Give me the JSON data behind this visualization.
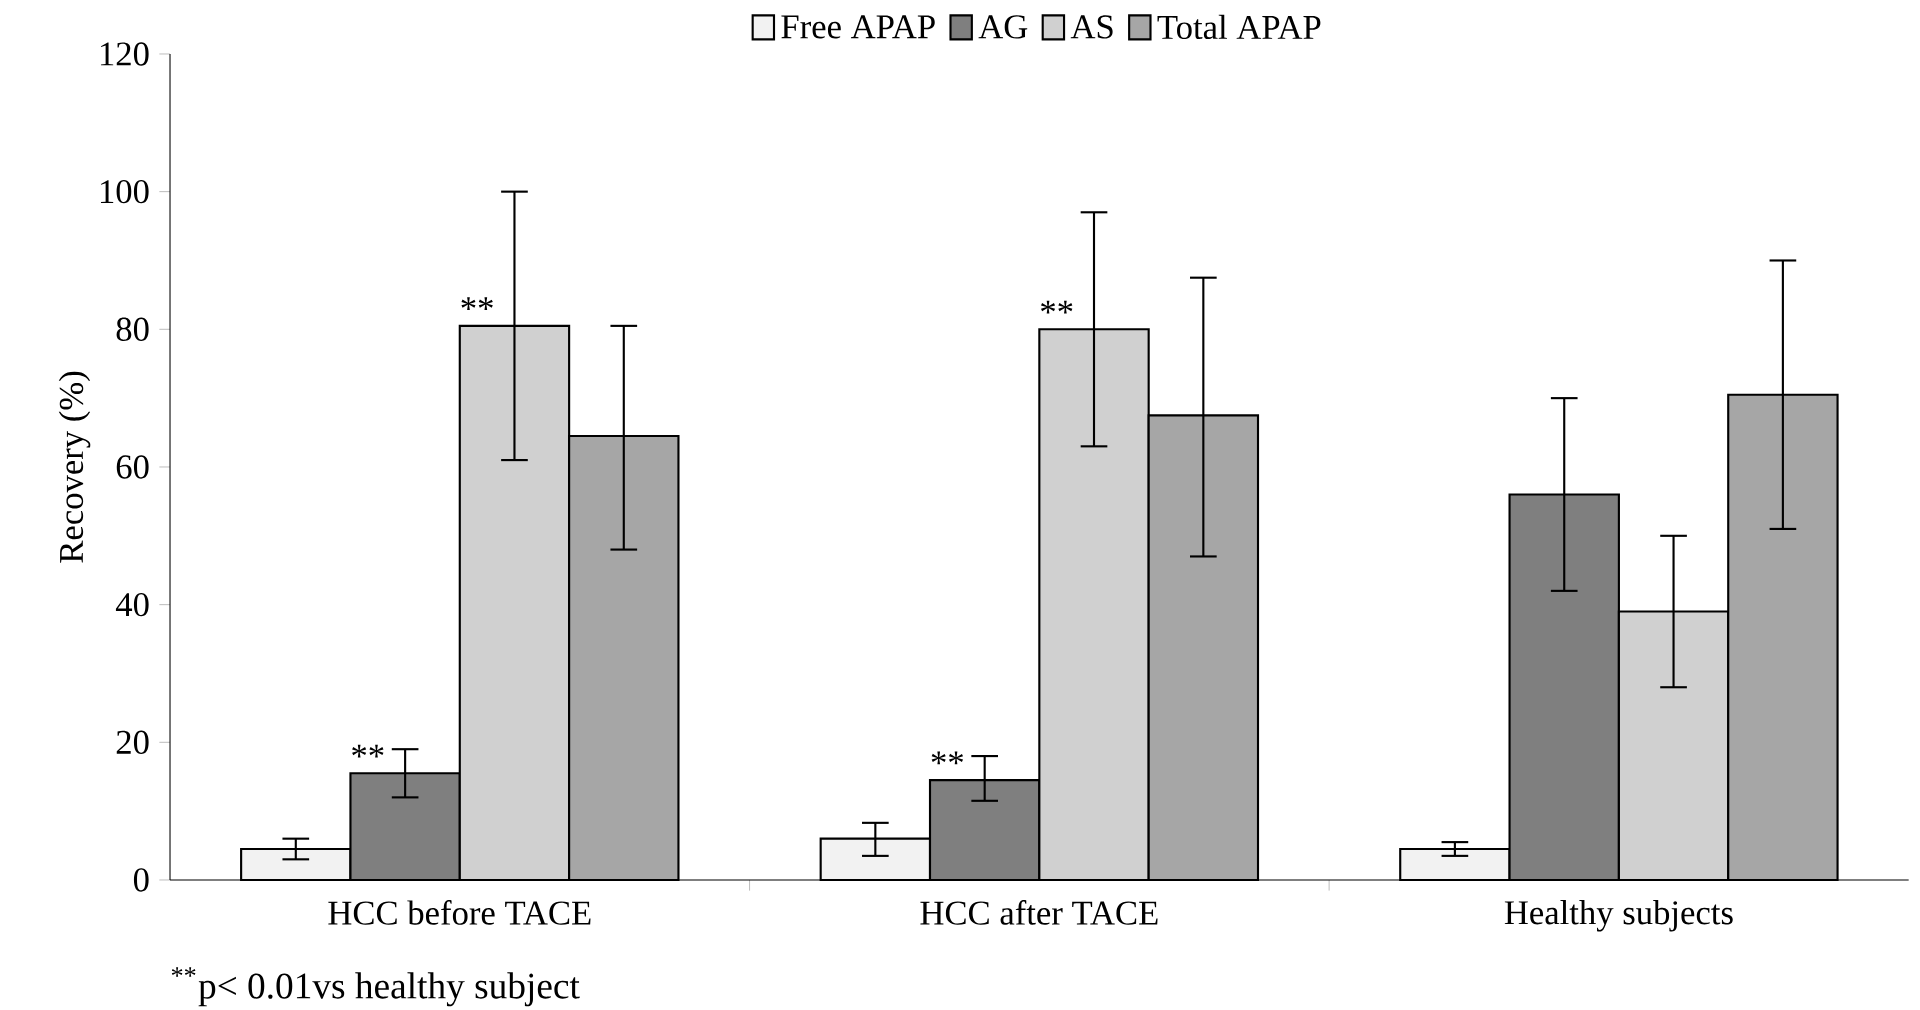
{
  "chart_data": {
    "type": "bar",
    "ylabel": "Recovery (%)",
    "categories": [
      "HCC before TACE",
      "HCC after TACE",
      "Healthy subjects"
    ],
    "series": [
      {
        "name": "Free APAP",
        "color": "#f2f2f2",
        "values": [
          4.5,
          6,
          4.5
        ],
        "errors": [
          [
            3,
            6
          ],
          [
            3.5,
            8.3
          ],
          [
            3.5,
            5.5
          ]
        ]
      },
      {
        "name": "AG",
        "color": "#7f7f7f",
        "values": [
          15.5,
          14.5,
          56
        ],
        "errors": [
          [
            12,
            19
          ],
          [
            11.5,
            18
          ],
          [
            42,
            70
          ]
        ]
      },
      {
        "name": "AS",
        "color": "#d0d0d0",
        "values": [
          80.5,
          80,
          39
        ],
        "errors": [
          [
            61,
            100
          ],
          [
            63,
            97
          ],
          [
            28,
            50
          ]
        ]
      },
      {
        "name": "Total APAP",
        "color": "#a6a6a6",
        "values": [
          64.5,
          67.5,
          70.5
        ],
        "errors": [
          [
            48,
            80.5
          ],
          [
            47,
            87.5
          ],
          [
            51,
            90
          ]
        ]
      }
    ],
    "ylim": [
      0,
      120
    ],
    "yticks": [
      0,
      20,
      40,
      60,
      80,
      100,
      120
    ],
    "legend": "top",
    "grid": false,
    "annotations": [
      {
        "text": "**",
        "x": "HCC before TACE",
        "y": 15.5
      },
      {
        "text": "**",
        "x": "HCC before TACE",
        "y": 80.5
      },
      {
        "text": "**",
        "x": "HCC after TACE",
        "y": 14.5
      },
      {
        "text": "**",
        "x": "HCC after TACE",
        "y": 80
      },
      "$^{**}$p< 0.01vs healthy subject"
    ]
  }
}
